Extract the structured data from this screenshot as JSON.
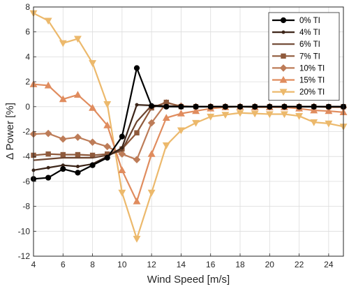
{
  "chart_data": {
    "type": "line",
    "title": "",
    "xlabel": "Wind Speed [m/s]",
    "ylabel": "Δ Power [%]",
    "xlim": [
      4,
      25
    ],
    "ylim": [
      -12,
      8
    ],
    "grid": true,
    "legend_position": "top-right",
    "x_ticks": [
      4,
      6,
      8,
      10,
      12,
      14,
      16,
      18,
      20,
      22,
      24
    ],
    "y_ticks": [
      -12,
      -10,
      -8,
      -6,
      -4,
      -2,
      0,
      2,
      4,
      6,
      8
    ],
    "x": [
      4,
      5,
      6,
      7,
      8,
      9,
      10,
      11,
      12,
      13,
      14,
      15,
      16,
      17,
      18,
      19,
      20,
      21,
      22,
      23,
      24,
      25
    ],
    "series": [
      {
        "name": "0% TI",
        "color": "#000000",
        "marker": "circle",
        "values": [
          -5.8,
          -5.7,
          -5.0,
          -5.3,
          -4.7,
          -4.1,
          -2.4,
          3.1,
          0.05,
          0.0,
          0.0,
          0.0,
          0.0,
          0.0,
          0.0,
          0.0,
          0.0,
          0.0,
          0.0,
          0.0,
          0.0,
          0.0
        ]
      },
      {
        "name": "4% TI",
        "color": "#3b2418",
        "marker": "dot",
        "values": [
          -5.1,
          -4.9,
          -4.7,
          -4.8,
          -4.6,
          -4.0,
          -3.3,
          0.15,
          0.1,
          0.05,
          0.0,
          0.0,
          0.0,
          0.0,
          0.0,
          0.0,
          0.0,
          0.0,
          0.0,
          0.0,
          0.0,
          0.0
        ]
      },
      {
        "name": "6% TI",
        "color": "#6d4530",
        "marker": "none",
        "values": [
          -4.3,
          -4.2,
          -4.1,
          -4.1,
          -4.1,
          -3.9,
          -3.5,
          -1.2,
          0.1,
          0.05,
          0.0,
          0.0,
          0.0,
          0.0,
          0.0,
          0.0,
          0.0,
          0.0,
          0.0,
          0.0,
          0.0,
          0.0
        ]
      },
      {
        "name": "7% TI",
        "color": "#8f5a3c",
        "marker": "square",
        "values": [
          -3.9,
          -3.8,
          -3.85,
          -3.85,
          -3.9,
          -3.8,
          -3.4,
          -2.1,
          -0.1,
          0.35,
          0.0,
          0.0,
          0.0,
          0.0,
          0.0,
          0.0,
          0.0,
          0.0,
          0.0,
          0.0,
          0.0,
          0.0
        ]
      },
      {
        "name": "10% TI",
        "color": "#bd7c58",
        "marker": "diamond",
        "values": [
          -2.2,
          -2.15,
          -2.6,
          -2.45,
          -2.85,
          -3.2,
          -3.8,
          -4.25,
          -1.3,
          0.3,
          0.05,
          0.0,
          0.0,
          0.0,
          0.0,
          0.0,
          0.0,
          0.0,
          0.0,
          0.0,
          -0.05,
          -0.05
        ]
      },
      {
        "name": "15% TI",
        "color": "#e08c5e",
        "marker": "triangle-up",
        "values": [
          1.8,
          1.7,
          0.6,
          0.95,
          -0.1,
          -1.5,
          -5.1,
          -7.6,
          -3.8,
          -0.9,
          -0.55,
          -0.35,
          -0.15,
          -0.05,
          0.0,
          -0.05,
          -0.05,
          -0.05,
          -0.15,
          -0.3,
          -0.35,
          -0.45
        ]
      },
      {
        "name": "20% TI",
        "color": "#ecb96c",
        "marker": "triangle-down",
        "values": [
          7.5,
          6.9,
          5.1,
          5.45,
          3.5,
          0.2,
          -6.9,
          -10.6,
          -6.9,
          -3.1,
          -1.9,
          -1.3,
          -0.8,
          -0.65,
          -0.5,
          -0.55,
          -0.6,
          -0.6,
          -0.75,
          -1.25,
          -1.35,
          -1.6
        ]
      }
    ]
  }
}
